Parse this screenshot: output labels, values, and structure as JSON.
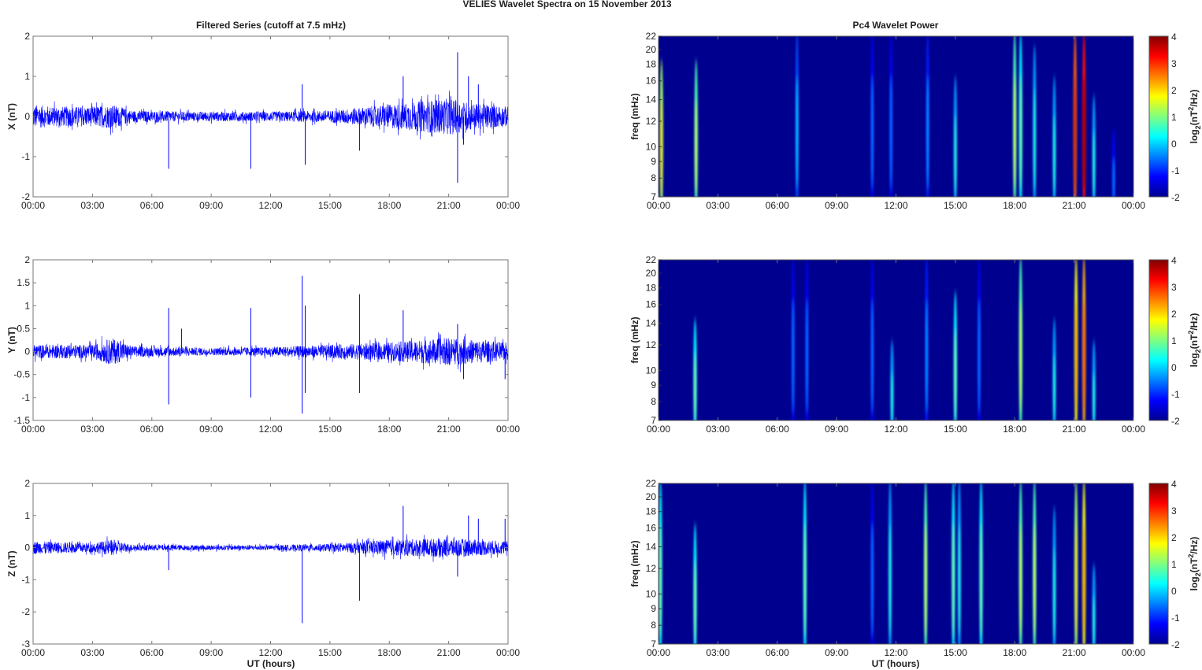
{
  "chart_data": {
    "type": "line+heatmap",
    "title": "VELIES Wavelet Spectra on 15 November  2013",
    "left_title": "Filtered Series (cutoff at 7.5 mHz)",
    "right_title": "Pc4 Wavelet Power",
    "xlabel": "UT (hours)",
    "xticks": [
      "00:00",
      "03:00",
      "06:00",
      "09:00",
      "12:00",
      "15:00",
      "18:00",
      "21:00",
      "00:00"
    ],
    "xlim": [
      0,
      24
    ],
    "freq_label": "freq (mHz)",
    "freq_ticks": [
      "7",
      "8",
      "9",
      "10",
      "12",
      "14",
      "16",
      "18",
      "20",
      "22"
    ],
    "freq_lim": [
      7,
      22
    ],
    "colorbar": {
      "label": "log2(nT²/Hz)",
      "ticks": [
        "-2",
        "-1",
        "0",
        "1",
        "2",
        "3",
        "4"
      ],
      "lim": [
        -2,
        4
      ]
    },
    "series": [
      {
        "name": "X",
        "ylabel": "X (nT)",
        "ylim": [
          -2,
          2
        ],
        "yticks": [
          "-2",
          "-1",
          "0",
          "1",
          "2"
        ],
        "noise_envelope": [
          [
            0,
            0.3
          ],
          [
            1,
            0.25
          ],
          [
            3,
            0.25
          ],
          [
            4,
            0.3
          ],
          [
            5,
            0.15
          ],
          [
            8,
            0.12
          ],
          [
            12,
            0.12
          ],
          [
            15,
            0.15
          ],
          [
            18,
            0.3
          ],
          [
            21,
            0.45
          ],
          [
            22,
            0.35
          ],
          [
            24,
            0.25
          ]
        ],
        "spikes": [
          [
            6.85,
            -1.3
          ],
          [
            11.0,
            -1.3
          ],
          [
            13.6,
            0.8
          ],
          [
            13.75,
            -1.2
          ],
          [
            16.5,
            -0.85
          ],
          [
            18.7,
            1.0
          ],
          [
            21.45,
            1.6
          ],
          [
            21.45,
            -1.65
          ],
          [
            21.75,
            -0.7
          ],
          [
            22.0,
            1.0
          ],
          [
            22.5,
            0.8
          ],
          [
            20.15,
            -0.5
          ]
        ],
        "streaks": [
          [
            0.15,
            2.0,
            7,
            18
          ],
          [
            1.9,
            1.5,
            7,
            18
          ],
          [
            7.0,
            0.0,
            7,
            22
          ],
          [
            10.8,
            -0.5,
            7,
            22
          ],
          [
            11.75,
            -0.5,
            7,
            22
          ],
          [
            13.6,
            -0.3,
            7,
            22
          ],
          [
            15.0,
            0.5,
            7,
            16
          ],
          [
            18.0,
            1.5,
            7,
            22
          ],
          [
            18.3,
            1.0,
            7,
            22
          ],
          [
            19.0,
            0.5,
            7,
            20
          ],
          [
            20.0,
            0.5,
            7,
            16
          ],
          [
            21.05,
            3.5,
            7,
            22
          ],
          [
            21.5,
            4.0,
            7,
            22
          ],
          [
            22.0,
            0.5,
            7,
            14
          ],
          [
            23.0,
            -0.5,
            7,
            11
          ]
        ]
      },
      {
        "name": "Y",
        "ylabel": "Y (nT)",
        "ylim": [
          -1.5,
          2
        ],
        "yticks": [
          "-1.5",
          "-1",
          "-0.5",
          "0",
          "0.5",
          "1",
          "1.5",
          "2"
        ],
        "noise_envelope": [
          [
            0,
            0.15
          ],
          [
            3,
            0.15
          ],
          [
            4,
            0.3
          ],
          [
            5,
            0.12
          ],
          [
            9,
            0.08
          ],
          [
            12,
            0.1
          ],
          [
            15,
            0.15
          ],
          [
            18,
            0.2
          ],
          [
            21,
            0.3
          ],
          [
            24,
            0.2
          ]
        ],
        "spikes": [
          [
            6.85,
            0.95
          ],
          [
            6.85,
            -1.15
          ],
          [
            7.5,
            0.5
          ],
          [
            11.0,
            0.95
          ],
          [
            11.0,
            -1.0
          ],
          [
            13.6,
            1.65
          ],
          [
            13.6,
            -1.35
          ],
          [
            13.75,
            1.0
          ],
          [
            13.75,
            -0.9
          ],
          [
            16.5,
            1.25
          ],
          [
            16.5,
            -0.9
          ],
          [
            18.7,
            0.9
          ],
          [
            21.45,
            0.6
          ],
          [
            21.75,
            -0.6
          ],
          [
            23.85,
            -0.6
          ]
        ],
        "streaks": [
          [
            1.85,
            1.0,
            7,
            14
          ],
          [
            6.8,
            -0.5,
            7,
            22
          ],
          [
            7.5,
            -0.5,
            7,
            22
          ],
          [
            10.8,
            -0.5,
            7,
            22
          ],
          [
            11.8,
            0.5,
            7,
            12
          ],
          [
            13.55,
            -0.3,
            7,
            22
          ],
          [
            15.0,
            1.0,
            7,
            17
          ],
          [
            16.2,
            -0.5,
            7,
            22
          ],
          [
            18.3,
            1.5,
            7,
            22
          ],
          [
            20.0,
            0.5,
            7,
            14
          ],
          [
            21.1,
            2.5,
            7,
            22
          ],
          [
            21.5,
            3.0,
            7,
            22
          ],
          [
            22.0,
            0.5,
            7,
            12
          ]
        ]
      },
      {
        "name": "Z",
        "ylabel": "Z (nT)",
        "ylim": [
          -3,
          2
        ],
        "yticks": [
          "-3",
          "-2",
          "-1",
          "0",
          "1",
          "2"
        ],
        "noise_envelope": [
          [
            0,
            0.2
          ],
          [
            3,
            0.15
          ],
          [
            4,
            0.25
          ],
          [
            5,
            0.1
          ],
          [
            9,
            0.08
          ],
          [
            12,
            0.08
          ],
          [
            15,
            0.12
          ],
          [
            18,
            0.25
          ],
          [
            21,
            0.3
          ],
          [
            24,
            0.2
          ]
        ],
        "spikes": [
          [
            6.85,
            -0.7
          ],
          [
            13.6,
            -2.35
          ],
          [
            16.5,
            -1.65
          ],
          [
            18.7,
            1.3
          ],
          [
            21.45,
            -0.9
          ],
          [
            22.0,
            1.0
          ],
          [
            22.5,
            0.9
          ],
          [
            23.85,
            0.9
          ]
        ],
        "streaks": [
          [
            0.1,
            1.0,
            7,
            22
          ],
          [
            1.85,
            1.0,
            7,
            16
          ],
          [
            7.4,
            1.0,
            7,
            22
          ],
          [
            10.8,
            -0.5,
            7,
            22
          ],
          [
            11.7,
            0.5,
            7,
            22
          ],
          [
            13.5,
            1.5,
            7,
            22
          ],
          [
            14.9,
            1.0,
            7,
            22
          ],
          [
            15.2,
            0.5,
            7,
            22
          ],
          [
            16.3,
            1.0,
            7,
            22
          ],
          [
            18.3,
            1.5,
            7,
            22
          ],
          [
            19.0,
            1.5,
            7,
            22
          ],
          [
            20.0,
            0.5,
            7,
            18
          ],
          [
            21.1,
            2.0,
            7,
            22
          ],
          [
            21.5,
            2.5,
            7,
            22
          ],
          [
            22.0,
            0.5,
            7,
            12
          ]
        ]
      }
    ]
  }
}
